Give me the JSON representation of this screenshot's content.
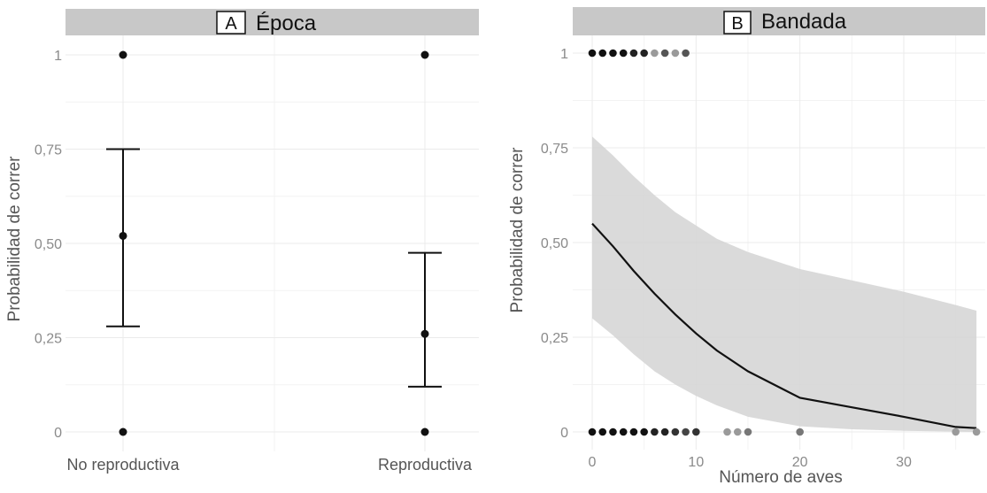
{
  "chart_data": [
    {
      "type": "errorbar",
      "panel_letter": "A",
      "panel_title": "Época",
      "ylabel": "Probabilidad de correr",
      "xlabel": "",
      "ylim": [
        0,
        1
      ],
      "yticks": [
        "0",
        "0,25",
        "0,50",
        "0,75",
        "1"
      ],
      "ytick_values": [
        0,
        0.25,
        0.5,
        0.75,
        1
      ],
      "categories": [
        "No reproductiva",
        "Reproductiva"
      ],
      "estimates": [
        {
          "category": "No reproductiva",
          "mean": 0.52,
          "lower": 0.28,
          "upper": 0.75
        },
        {
          "category": "Reproductiva",
          "mean": 0.26,
          "lower": 0.12,
          "upper": 0.475
        }
      ],
      "raw_points": [
        {
          "category": "No reproductiva",
          "y": 1
        },
        {
          "category": "No reproductiva",
          "y": 0
        },
        {
          "category": "Reproductiva",
          "y": 1
        },
        {
          "category": "Reproductiva",
          "y": 0
        }
      ]
    },
    {
      "type": "line",
      "panel_letter": "B",
      "panel_title": "Bandada",
      "ylabel": "Probabilidad de correr",
      "xlabel": "Número de aves",
      "xlim": [
        -2,
        37
      ],
      "ylim": [
        0,
        1
      ],
      "xticks": [
        "0",
        "10",
        "20",
        "30"
      ],
      "xtick_values": [
        0,
        10,
        20,
        30
      ],
      "yticks": [
        "0",
        "0,25",
        "0,50",
        "0,75",
        "1"
      ],
      "ytick_values": [
        0,
        0.25,
        0.5,
        0.75,
        1
      ],
      "fit": {
        "x": [
          0,
          2,
          4,
          6,
          8,
          10,
          12,
          15,
          20,
          25,
          30,
          35,
          37
        ],
        "y": [
          0.55,
          0.49,
          0.425,
          0.365,
          0.31,
          0.26,
          0.215,
          0.16,
          0.09,
          0.065,
          0.04,
          0.013,
          0.01
        ]
      },
      "ribbon": {
        "x": [
          0,
          2,
          4,
          6,
          8,
          10,
          12,
          15,
          20,
          25,
          30,
          35,
          37
        ],
        "lower": [
          0.3,
          0.255,
          0.205,
          0.16,
          0.125,
          0.095,
          0.07,
          0.04,
          0.015,
          0.007,
          0.003,
          0.001,
          0.0
        ],
        "upper": [
          0.78,
          0.73,
          0.675,
          0.625,
          0.58,
          0.545,
          0.51,
          0.475,
          0.43,
          0.4,
          0.37,
          0.335,
          0.32
        ]
      },
      "points_y1": [
        {
          "x": 0,
          "shade": "#111111"
        },
        {
          "x": 1,
          "shade": "#111111"
        },
        {
          "x": 2,
          "shade": "#111111"
        },
        {
          "x": 3,
          "shade": "#111111"
        },
        {
          "x": 4,
          "shade": "#222222"
        },
        {
          "x": 5,
          "shade": "#222222"
        },
        {
          "x": 6,
          "shade": "#9a9a9a"
        },
        {
          "x": 7,
          "shade": "#555555"
        },
        {
          "x": 8,
          "shade": "#9a9a9a"
        },
        {
          "x": 9,
          "shade": "#555555"
        }
      ],
      "points_y0": [
        {
          "x": 0,
          "shade": "#111111"
        },
        {
          "x": 1,
          "shade": "#111111"
        },
        {
          "x": 2,
          "shade": "#111111"
        },
        {
          "x": 3,
          "shade": "#111111"
        },
        {
          "x": 4,
          "shade": "#111111"
        },
        {
          "x": 5,
          "shade": "#111111"
        },
        {
          "x": 6,
          "shade": "#222222"
        },
        {
          "x": 7,
          "shade": "#222222"
        },
        {
          "x": 8,
          "shade": "#333333"
        },
        {
          "x": 9,
          "shade": "#444444"
        },
        {
          "x": 10,
          "shade": "#333333"
        },
        {
          "x": 13,
          "shade": "#9a9a9a"
        },
        {
          "x": 14,
          "shade": "#9a9a9a"
        },
        {
          "x": 15,
          "shade": "#777777"
        },
        {
          "x": 20,
          "shade": "#777777"
        },
        {
          "x": 35,
          "shade": "#9a9a9a"
        },
        {
          "x": 37,
          "shade": "#9a9a9a"
        }
      ]
    }
  ]
}
